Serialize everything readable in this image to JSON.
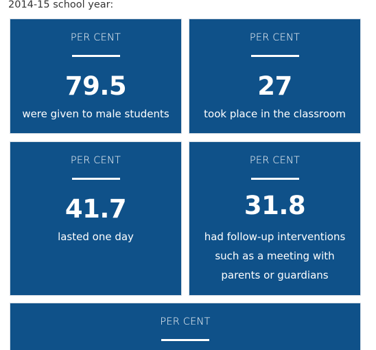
{
  "intro": "2014-15 school year:",
  "cards": [
    {
      "label": "PER CENT",
      "value": "79.5",
      "description": "were given to male students"
    },
    {
      "label": "PER CENT",
      "value": "27",
      "description": "took place in the classroom"
    },
    {
      "label": "PER CENT",
      "value": "41.7",
      "description": "lasted one day"
    },
    {
      "label": "PER CENT",
      "value": "31.8",
      "description": "had follow-up interventions such as a meeting with parents or guardians"
    },
    {
      "label": "PER CENT"
    }
  ],
  "colors": {
    "card_background": "#0f5189",
    "card_text": "#ffffff",
    "intro_text": "#333333"
  }
}
